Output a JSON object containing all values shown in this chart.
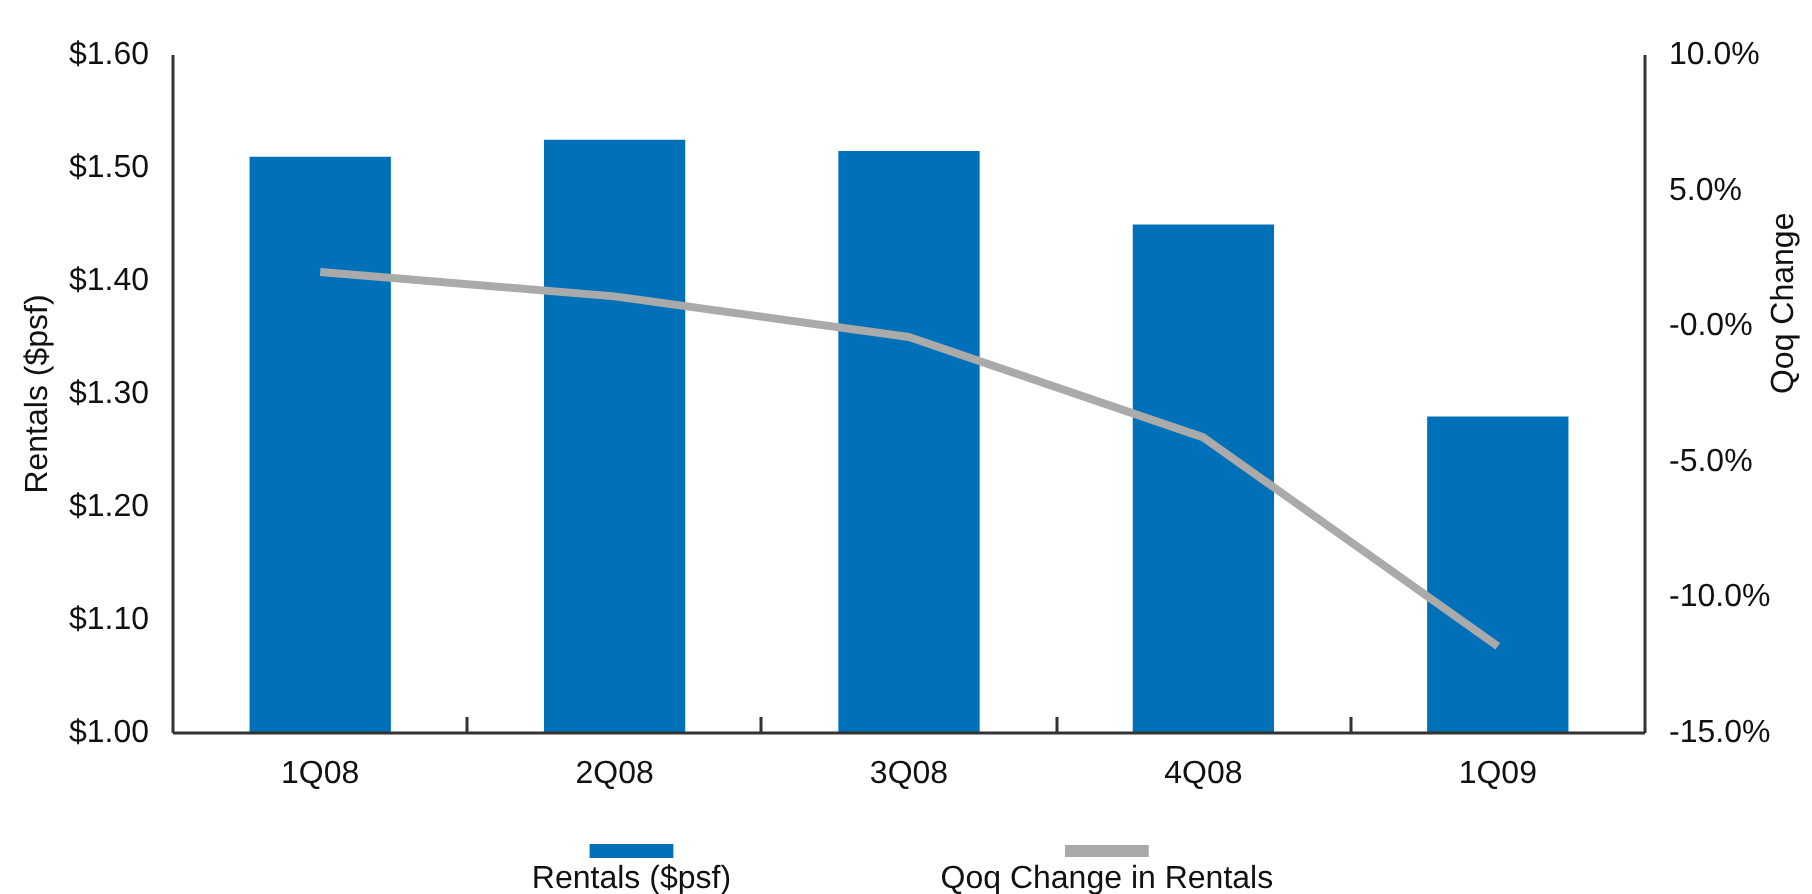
{
  "chart_data": {
    "type": "bar",
    "categories": [
      "1Q08",
      "2Q08",
      "3Q08",
      "4Q08",
      "1Q09"
    ],
    "ylabel": "Rentals ($psf)",
    "y2label": "Qoq Change",
    "series": [
      {
        "name": "Rentals ($psf)",
        "color": "#0070b8",
        "values": [
          1.51,
          1.525,
          1.515,
          1.45,
          1.28
        ]
      },
      {
        "name": "Qoq Change in Rentals",
        "type": "line",
        "axis": "y2",
        "color": "#aaaaaa",
        "values": [
          2.0,
          1.1,
          -0.4,
          -4.1,
          -11.8
        ]
      }
    ],
    "ylim": [
      1.0,
      1.6
    ],
    "yticks": [
      {
        "value": 1.0,
        "label": "$1.00"
      },
      {
        "value": 1.1,
        "label": "$1.10"
      },
      {
        "value": 1.2,
        "label": "$1.20"
      },
      {
        "value": 1.3,
        "label": "$1.30"
      },
      {
        "value": 1.4,
        "label": "$1.40"
      },
      {
        "value": 1.5,
        "label": "$1.50"
      },
      {
        "value": 1.6,
        "label": "$1.60"
      }
    ],
    "y2lim": [
      -15,
      10
    ],
    "y2ticks": [
      {
        "value": -15,
        "label": "-15.0%"
      },
      {
        "value": -10,
        "label": "-10.0%"
      },
      {
        "value": -5,
        "label": "-5.0%"
      },
      {
        "value": 0,
        "label": "-0.0%"
      },
      {
        "value": 5,
        "label": "5.0%"
      },
      {
        "value": 10,
        "label": "10.0%"
      }
    ],
    "legend": "bottom"
  }
}
